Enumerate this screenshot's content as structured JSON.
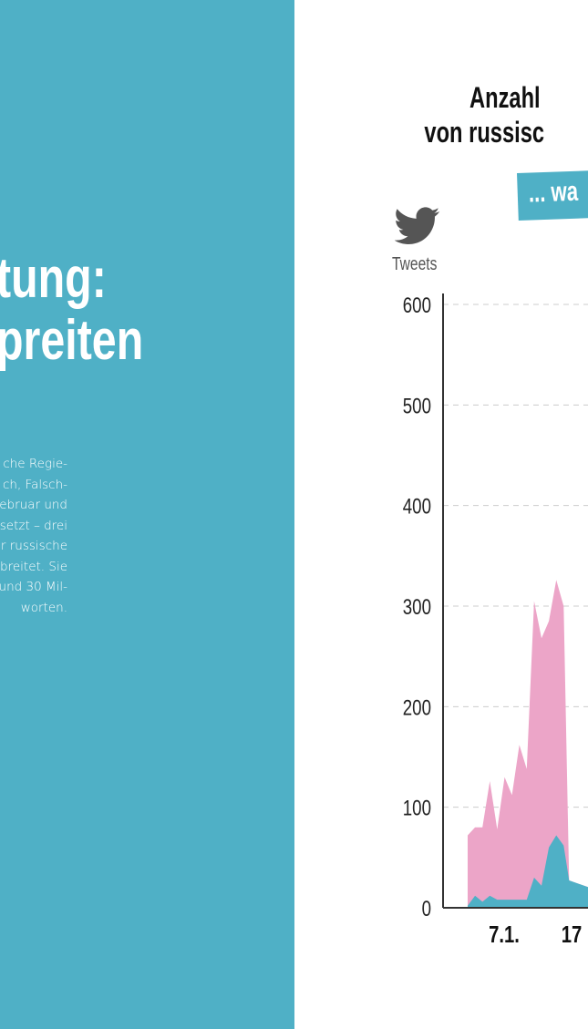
{
  "left": {
    "headline_lines": [
      "tung:",
      "preiten"
    ],
    "body_lines": [
      "che Regie-",
      "ch, Falsch-",
      "ebruar und",
      "setzt – drei",
      "er russische",
      "breitet. Sie",
      "und 30 Mil-",
      "worten."
    ],
    "background": "#4fb0c6"
  },
  "chart_title_lines": [
    "Anzahl",
    "von russisc"
  ],
  "tag_label": "... wa",
  "icon": "twitter-bird-icon",
  "colors": {
    "pink": "#eca5c8",
    "teal": "#4fb0c6",
    "axis": "#333333",
    "grid": "#cccccc"
  },
  "chart_data": {
    "type": "area",
    "title": "",
    "ylabel": "Tweets",
    "ylim": [
      0,
      600
    ],
    "yticks": [
      "0",
      "100",
      "200",
      "300",
      "400",
      "500",
      "600"
    ],
    "xtick_labels": [
      "7.1.",
      "17"
    ],
    "grid": true,
    "x": [
      0,
      1,
      2,
      3,
      4,
      5,
      6,
      7,
      8,
      9,
      10,
      11,
      12,
      13,
      14,
      15,
      16,
      17,
      18,
      19,
      20
    ],
    "series": [
      {
        "color": "#eca5c8",
        "values": [
          72,
          80,
          80,
          126,
          78,
          130,
          112,
          162,
          138,
          305,
          268,
          285,
          326,
          300,
          0,
          0,
          0,
          0,
          0,
          0,
          0
        ]
      },
      {
        "color": "#4fb0c6",
        "values": [
          2,
          12,
          6,
          12,
          8,
          8,
          8,
          8,
          8,
          30,
          22,
          60,
          72,
          62,
          0,
          0,
          0,
          0,
          0,
          0,
          0
        ]
      }
    ]
  }
}
